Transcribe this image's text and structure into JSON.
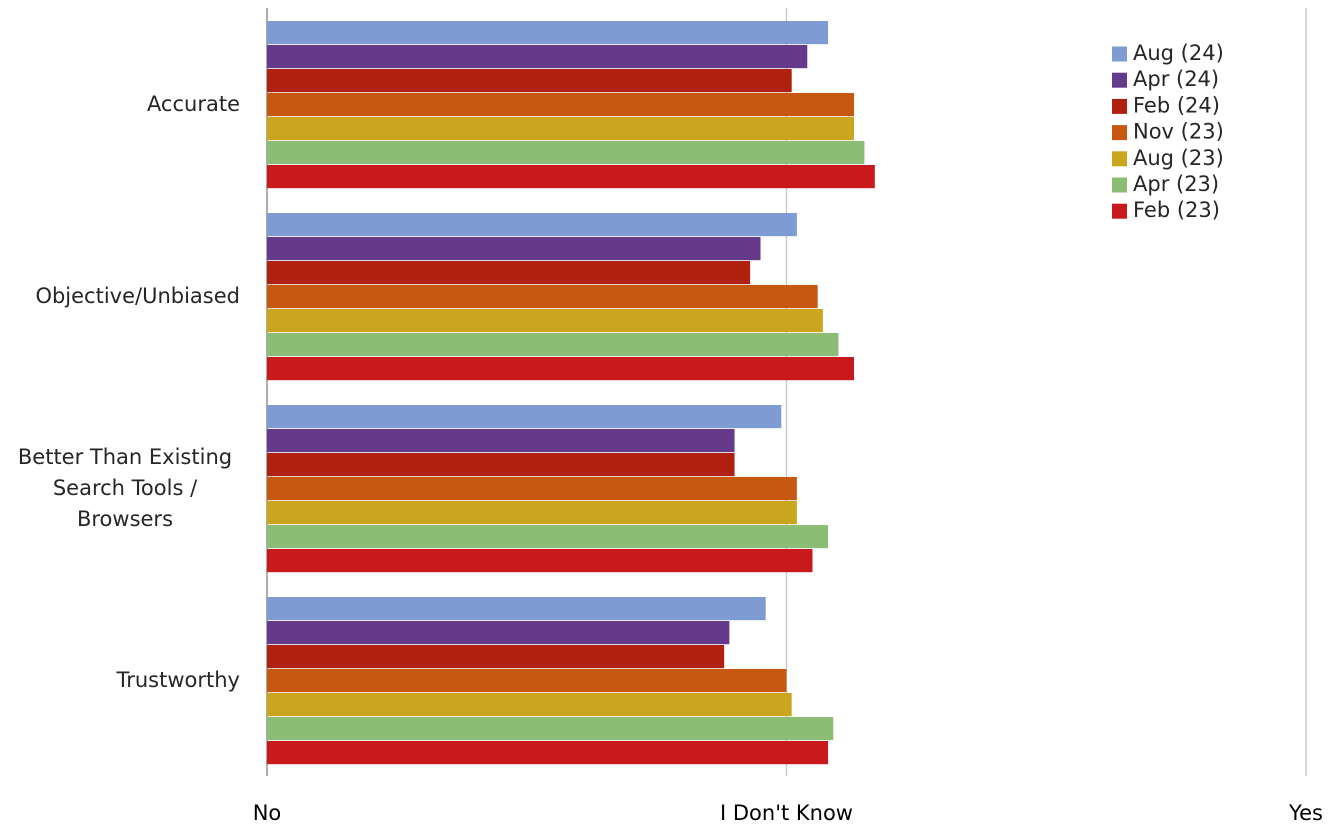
{
  "chart_data": {
    "type": "bar",
    "orientation": "horizontal",
    "title": "",
    "xlabel": "",
    "ylabel": "",
    "xlim": [
      1,
      3
    ],
    "x_ticks": [
      {
        "value": 1,
        "label": "No"
      },
      {
        "value": 2,
        "label": "I Don't Know"
      },
      {
        "value": 3,
        "label": "Yes"
      }
    ],
    "grid": "vertical lines at ticks",
    "legend_position": "top-right",
    "categories": [
      {
        "lines": [
          "Accurate"
        ]
      },
      {
        "lines": [
          "Objective/Unbiased"
        ]
      },
      {
        "lines": [
          "Better Than Existing",
          "Search Tools /",
          "Browsers"
        ]
      },
      {
        "lines": [
          "Trustworthy"
        ]
      }
    ],
    "series": [
      {
        "name": "Aug (24)",
        "color": "#7f9bd3",
        "values": [
          2.08,
          2.02,
          1.99,
          1.96
        ]
      },
      {
        "name": "Apr (24)",
        "color": "#663a8b",
        "values": [
          2.04,
          1.95,
          1.9,
          1.89
        ]
      },
      {
        "name": "Feb (24)",
        "color": "#b0200e",
        "values": [
          2.01,
          1.93,
          1.9,
          1.88
        ]
      },
      {
        "name": "Nov (23)",
        "color": "#c65811",
        "values": [
          2.13,
          2.06,
          2.02,
          2.0
        ]
      },
      {
        "name": "Aug (23)",
        "color": "#c9a61e",
        "values": [
          2.13,
          2.07,
          2.02,
          2.01
        ]
      },
      {
        "name": "Apr (23)",
        "color": "#8bbd75",
        "values": [
          2.15,
          2.1,
          2.08,
          2.09
        ]
      },
      {
        "name": "Feb (23)",
        "color": "#c81a1c",
        "values": [
          2.17,
          2.13,
          2.05,
          2.08
        ]
      }
    ]
  }
}
